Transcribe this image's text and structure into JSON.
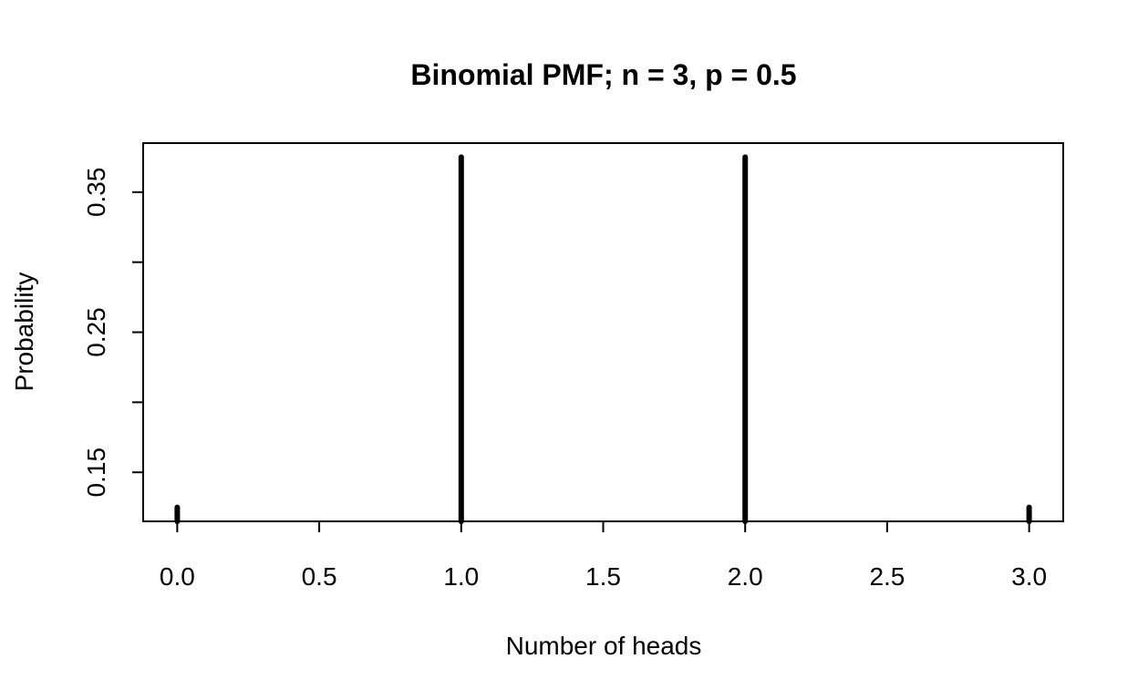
{
  "chart_data": {
    "type": "bar",
    "title": "Binomial PMF; n = 3, p = 0.5",
    "xlabel": "Number of heads",
    "ylabel": "Probability",
    "x": [
      0,
      1,
      2,
      3
    ],
    "values": [
      0.125,
      0.375,
      0.375,
      0.125
    ],
    "xlim": [
      -0.12,
      3.12
    ],
    "ylim": [
      0.115,
      0.385
    ],
    "x_ticks": [
      "0.0",
      "0.5",
      "1.0",
      "1.5",
      "2.0",
      "2.5",
      "3.0"
    ],
    "y_ticks": [
      "0.15",
      "0.20",
      "0.25",
      "0.30",
      "0.35"
    ],
    "y_tick_labels": [
      "0.15",
      "",
      "0.25",
      "",
      "0.35"
    ],
    "grid": false,
    "legend": "none",
    "bar_style": "vertical spikes",
    "color": "#000000"
  }
}
